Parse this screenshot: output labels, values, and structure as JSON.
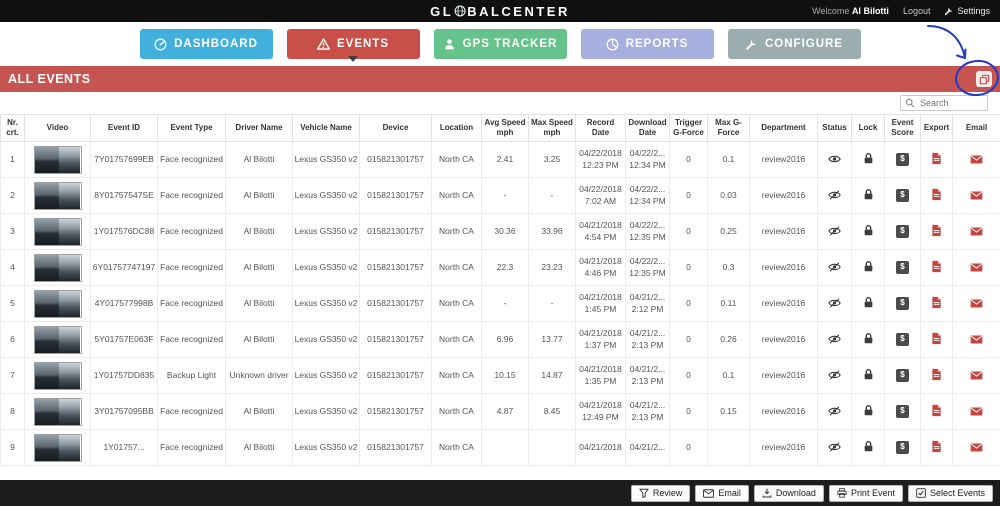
{
  "header": {
    "logo_prefix": "GL",
    "logo_suffix": "BALCENTER",
    "welcome_text": "Welcome",
    "user_name": "Al Bilotti",
    "logout_label": "Logout",
    "settings_label": "Settings"
  },
  "nav": {
    "items": [
      {
        "label": "DASHBOARD",
        "icon": "gauge-icon",
        "color": "#41b0dd",
        "active": false
      },
      {
        "label": "EVENTS",
        "icon": "warning-icon",
        "color": "#c94f49",
        "active": true
      },
      {
        "label": "GPS TRACKER",
        "icon": "person-icon",
        "color": "#66c28b",
        "active": false
      },
      {
        "label": "REPORTS",
        "icon": "pie-chart-icon",
        "color": "#a6afde",
        "active": false
      },
      {
        "label": "CONFIGURE",
        "icon": "wrench-icon",
        "color": "#9badaf",
        "active": false
      }
    ]
  },
  "page_bar": {
    "title": "ALL EVENTS",
    "corner_icon": "copy-events-icon"
  },
  "search": {
    "placeholder": "Search"
  },
  "table": {
    "columns": [
      {
        "label": "Nr. crt.",
        "key": "nr"
      },
      {
        "label": "Video",
        "key": "video"
      },
      {
        "label": "Event ID",
        "key": "event_id"
      },
      {
        "label": "Event Type",
        "key": "event_type"
      },
      {
        "label": "Driver Name",
        "key": "driver"
      },
      {
        "label": "Vehicle Name",
        "key": "vehicle"
      },
      {
        "label": "Device",
        "key": "device"
      },
      {
        "label": "Location",
        "key": "location"
      },
      {
        "label": "Avg Speed mph",
        "key": "avg_speed"
      },
      {
        "label": "Max Speed mph",
        "key": "max_speed"
      },
      {
        "label": "Record Date",
        "key": "record_date"
      },
      {
        "label": "Download Date",
        "key": "download_date"
      },
      {
        "label": "Trigger G-Force",
        "key": "trigger_g"
      },
      {
        "label": "Max G-Force",
        "key": "max_g"
      },
      {
        "label": "Department",
        "key": "department"
      },
      {
        "label": "Status",
        "key": "status"
      },
      {
        "label": "Lock",
        "key": "lock"
      },
      {
        "label": "Event Score",
        "key": "score"
      },
      {
        "label": "Export",
        "key": "export"
      },
      {
        "label": "Email",
        "key": "email"
      }
    ],
    "rows": [
      {
        "nr": "1",
        "event_id": "7Y01757699EB",
        "event_type": "Face recognized",
        "driver": "Al Bilotti",
        "vehicle": "Lexus GS350 v2",
        "device": "015821301757",
        "location": "North CA",
        "avg_speed": "2.41",
        "max_speed": "3.25",
        "record_date": [
          "04/22/2018",
          "12:23 PM"
        ],
        "download_date": [
          "04/22/2...",
          "12:34 PM"
        ],
        "trigger_g": "0",
        "max_g": "0.1",
        "department": "review2016",
        "status": "visible"
      },
      {
        "nr": "2",
        "event_id": "8Y01757547SE",
        "event_type": "Face recognized",
        "driver": "Al Bilotti",
        "vehicle": "Lexus GS350 v2",
        "device": "015821301757",
        "location": "North CA",
        "avg_speed": "-",
        "max_speed": "-",
        "record_date": [
          "04/22/2018",
          "7:02 AM"
        ],
        "download_date": [
          "04/22/2...",
          "12:34 PM"
        ],
        "trigger_g": "0",
        "max_g": "0.03",
        "department": "review2016",
        "status": "hidden"
      },
      {
        "nr": "3",
        "event_id": "1Y017576DC88",
        "event_type": "Face recognized",
        "driver": "Al Bilotti",
        "vehicle": "Lexus GS350 v2",
        "device": "015821301757",
        "location": "North CA",
        "avg_speed": "30.36",
        "max_speed": "33.96",
        "record_date": [
          "04/21/2018",
          "4:54 PM"
        ],
        "download_date": [
          "04/22/2...",
          "12:35 PM"
        ],
        "trigger_g": "0",
        "max_g": "0.25",
        "department": "review2016",
        "status": "hidden"
      },
      {
        "nr": "4",
        "event_id": "6Y01757747197",
        "event_type": "Face recognized",
        "driver": "Al Bilotti",
        "vehicle": "Lexus GS350 v2",
        "device": "015821301757",
        "location": "North CA",
        "avg_speed": "22.3",
        "max_speed": "23.23",
        "record_date": [
          "04/21/2018",
          "4:46 PM"
        ],
        "download_date": [
          "04/22/2...",
          "12:35 PM"
        ],
        "trigger_g": "0",
        "max_g": "0.3",
        "department": "review2016",
        "status": "hidden"
      },
      {
        "nr": "5",
        "event_id": "4Y017577998B",
        "event_type": "Face recognized",
        "driver": "Al Bilotti",
        "vehicle": "Lexus GS350 v2",
        "device": "015821301757",
        "location": "North CA",
        "avg_speed": "-",
        "max_speed": "-",
        "record_date": [
          "04/21/2018",
          "1:45 PM"
        ],
        "download_date": [
          "04/21/2...",
          "2:12 PM"
        ],
        "trigger_g": "0",
        "max_g": "0.11",
        "department": "review2016",
        "status": "hidden"
      },
      {
        "nr": "6",
        "event_id": "5Y01757E063F",
        "event_type": "Face recognized",
        "driver": "Al Bilotti",
        "vehicle": "Lexus GS350 v2",
        "device": "015821301757",
        "location": "North CA",
        "avg_speed": "6.96",
        "max_speed": "13.77",
        "record_date": [
          "04/21/2018",
          "1:37 PM"
        ],
        "download_date": [
          "04/21/2...",
          "2:13 PM"
        ],
        "trigger_g": "0",
        "max_g": "0.26",
        "department": "review2016",
        "status": "hidden"
      },
      {
        "nr": "7",
        "event_id": "1Y01757DD835",
        "event_type": "Backup Light",
        "driver": "Unknown driver",
        "vehicle": "Lexus GS350 v2",
        "device": "015821301757",
        "location": "North CA",
        "avg_speed": "10.15",
        "max_speed": "14.87",
        "record_date": [
          "04/21/2018",
          "1:35 PM"
        ],
        "download_date": [
          "04/21/2...",
          "2:13 PM"
        ],
        "trigger_g": "0",
        "max_g": "0.1",
        "department": "review2016",
        "status": "hidden"
      },
      {
        "nr": "8",
        "event_id": "3Y01757095BB",
        "event_type": "Face recognized",
        "driver": "Al Bilotti",
        "vehicle": "Lexus GS350 v2",
        "device": "015821301757",
        "location": "North CA",
        "avg_speed": "4.87",
        "max_speed": "8.45",
        "record_date": [
          "04/21/2018",
          "12:49 PM"
        ],
        "download_date": [
          "04/21/2...",
          "2:13 PM"
        ],
        "trigger_g": "0",
        "max_g": "0.15",
        "department": "review2016",
        "status": "hidden"
      },
      {
        "nr": "9",
        "event_id": "1Y01757...",
        "event_type": "Face recognized",
        "driver": "Al Bilotti",
        "vehicle": "Lexus GS350 v2",
        "device": "015821301757",
        "location": "North CA",
        "avg_speed": "",
        "max_speed": "",
        "record_date": [
          "04/21/2018",
          ""
        ],
        "download_date": [
          "04/21/2...",
          ""
        ],
        "trigger_g": "0",
        "max_g": "",
        "department": "review2016",
        "status": "hidden"
      }
    ]
  },
  "footer": {
    "buttons": [
      {
        "label": "Review",
        "icon": "filter-icon"
      },
      {
        "label": "Email",
        "icon": "envelope-icon"
      },
      {
        "label": "Download",
        "icon": "download-icon"
      },
      {
        "label": "Print Event",
        "icon": "printer-icon"
      },
      {
        "label": "Select Events",
        "icon": "checklist-icon"
      }
    ]
  },
  "icons": {
    "event_score_glyph": "$"
  },
  "colors": {
    "topbar_bg": "#101010",
    "pagebar_bg": "#c65551",
    "footer_bg": "#1d1d1d",
    "action_red": "#c6443e",
    "annotation_blue": "#2238c6",
    "nav_active_caret": "#3f3f3f"
  }
}
